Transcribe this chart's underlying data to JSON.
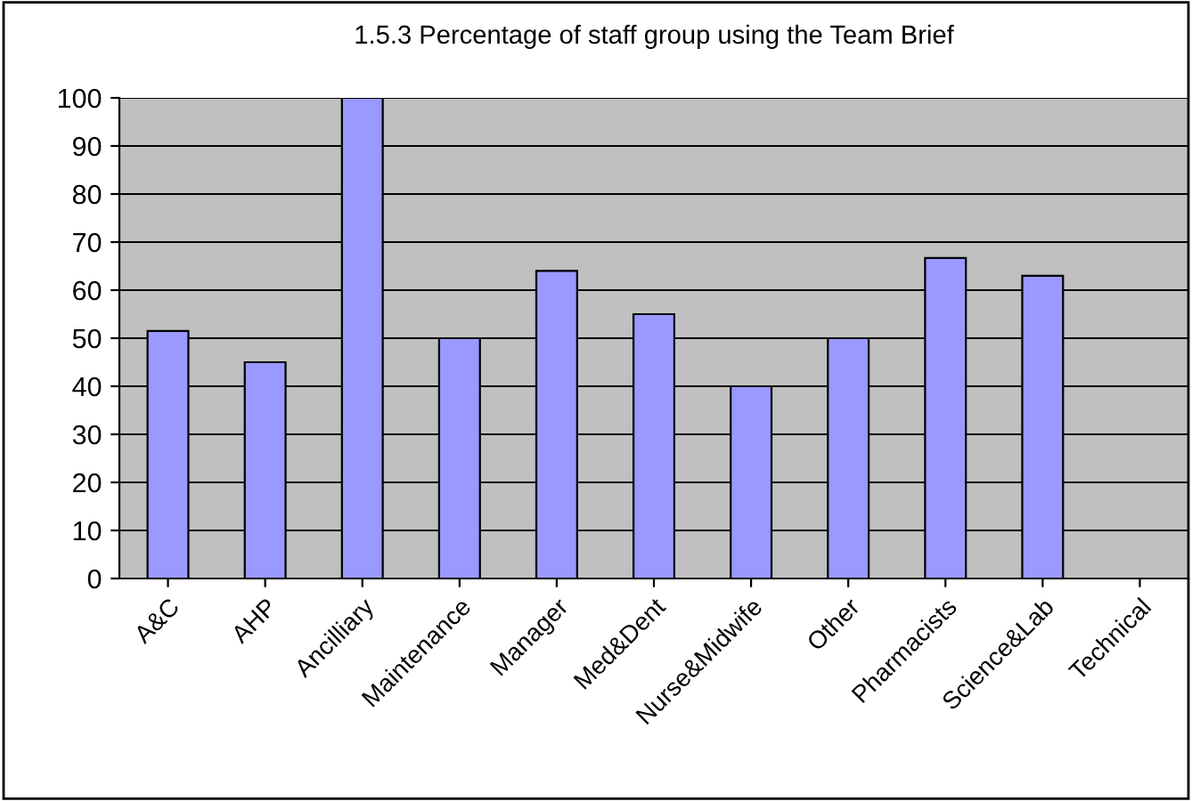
{
  "chart_data": {
    "type": "bar",
    "title": "1.5.3 Percentage of staff group using the Team Brief",
    "categories": [
      "A&C",
      "AHP",
      "Ancilliary",
      "Maintenance",
      "Manager",
      "Med&Dent",
      "Nurse&Midwife",
      "Other",
      "Pharmacists",
      "Science&Lab",
      "Technical"
    ],
    "values": [
      51.5,
      45,
      100,
      50,
      64,
      55,
      40,
      50,
      66.7,
      63,
      null
    ],
    "color": "#9999ff",
    "ylim": [
      0,
      100
    ],
    "yticks": [
      0,
      10,
      20,
      30,
      40,
      50,
      60,
      70,
      80,
      90,
      100
    ],
    "grid": "y"
  }
}
